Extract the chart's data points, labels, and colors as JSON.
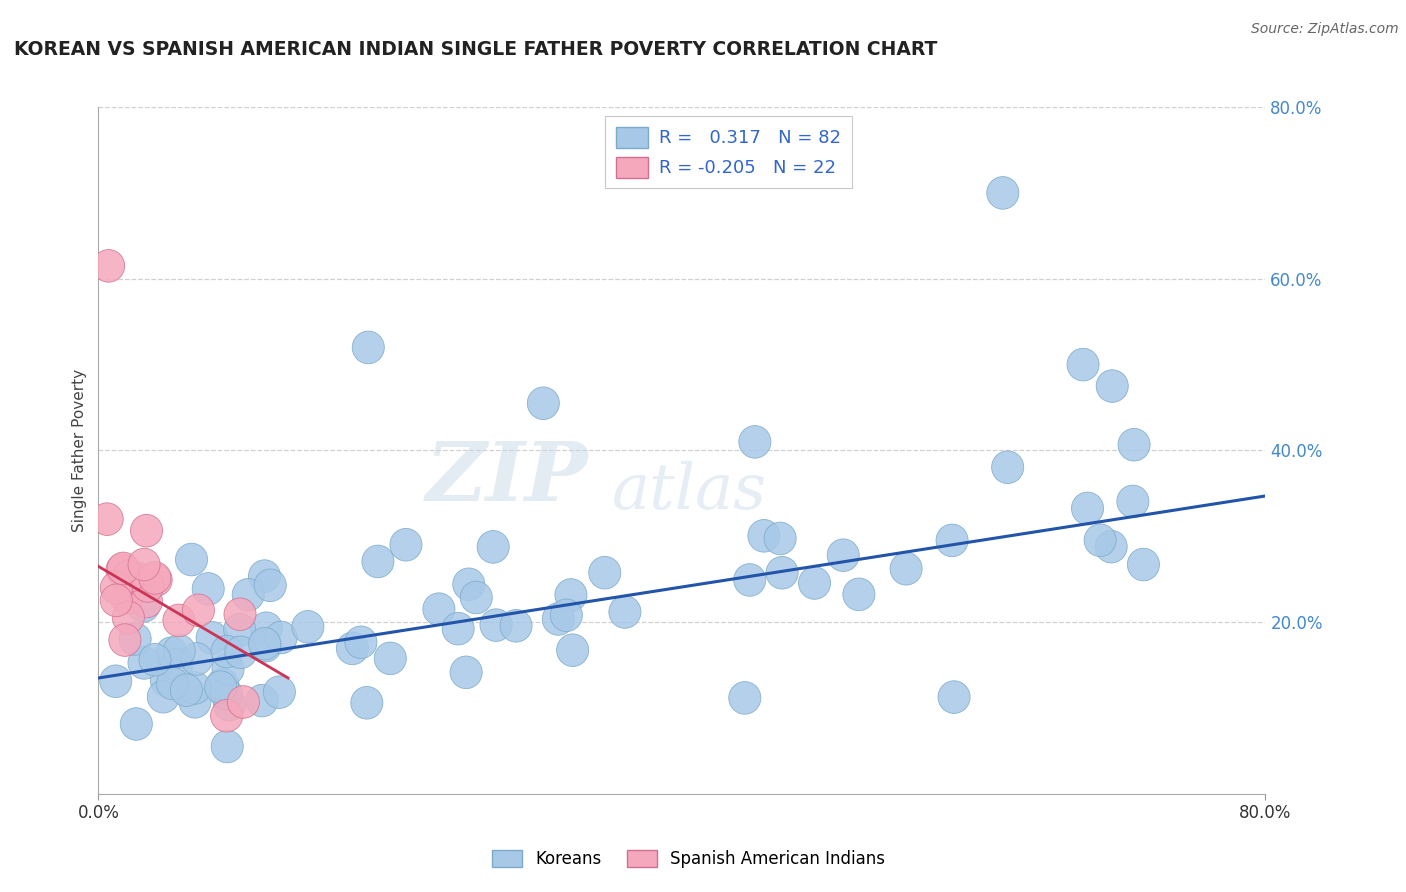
{
  "title": "KOREAN VS SPANISH AMERICAN INDIAN SINGLE FATHER POVERTY CORRELATION CHART",
  "source": "Source: ZipAtlas.com",
  "ylabel": "Single Father Poverty",
  "xlim": [
    0.0,
    0.8
  ],
  "ylim": [
    0.0,
    0.8
  ],
  "ytick_positions": [
    0.2,
    0.4,
    0.6,
    0.8
  ],
  "ytick_labels": [
    "20.0%",
    "40.0%",
    "60.0%",
    "80.0%"
  ],
  "korean_R": 0.317,
  "korean_N": 82,
  "spanish_R": -0.205,
  "spanish_N": 22,
  "korean_color": "#a8c8e8",
  "spanish_color": "#f5a8bc",
  "korean_edge_color": "#7aaac8",
  "spanish_edge_color": "#d07090",
  "korean_line_color": "#2255aa",
  "spanish_line_color": "#cc3355",
  "watermark_zip": "ZIP",
  "watermark_atlas": "atlas",
  "background_color": "#ffffff",
  "grid_color": "#d0d0d0",
  "right_axis_color": "#4488cc",
  "legend_text_color": "#3366cc",
  "korean_line_intercept": 0.135,
  "korean_line_slope": 0.265,
  "spanish_line_x0": 0.0,
  "spanish_line_y0": 0.265,
  "spanish_line_x1": 0.13,
  "spanish_line_y1": 0.135
}
